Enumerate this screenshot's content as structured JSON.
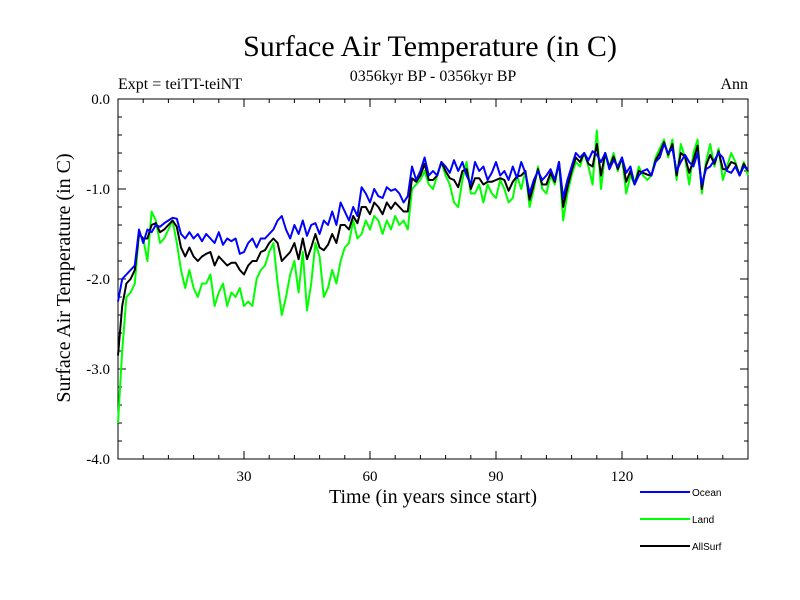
{
  "header": {
    "title": "Surface Air Temperature (in C)",
    "subtitle": "0356kyr BP - 0356kyr BP",
    "expt": "Expt = teiTT-teiNT",
    "season": "Ann"
  },
  "chart_data": {
    "type": "line",
    "title": "Surface Air Temperature (in C)",
    "xlabel": "Time (in years since start)",
    "ylabel": "Surface Air Temperature (in C)",
    "xlim": [
      0,
      150
    ],
    "ylim": [
      -4.0,
      0.0
    ],
    "xticks": [
      30,
      60,
      90,
      120
    ],
    "xtick_labels": [
      "30",
      "60",
      "90",
      "120"
    ],
    "yticks": [
      0.0,
      -1.0,
      -2.0,
      -3.0,
      -4.0
    ],
    "ytick_labels": [
      "0.0",
      "-1.0",
      "-2.0",
      "-3.0",
      "-4.0"
    ],
    "grid": false,
    "legend_position": "bottom-right, outside plot",
    "series": [
      {
        "name": "Ocean",
        "color": "#0000ff",
        "x": [
          0,
          1,
          2,
          3,
          4,
          5,
          6,
          7,
          8,
          9,
          10,
          11,
          12,
          13,
          14,
          15,
          16,
          17,
          18,
          19,
          20,
          21,
          22,
          23,
          24,
          25,
          26,
          27,
          28,
          29,
          30,
          31,
          32,
          33,
          34,
          35,
          36,
          37,
          38,
          39,
          40,
          41,
          42,
          43,
          44,
          45,
          46,
          47,
          48,
          49,
          50,
          51,
          52,
          53,
          54,
          55,
          56,
          57,
          58,
          59,
          60,
          61,
          62,
          63,
          64,
          65,
          66,
          67,
          68,
          69,
          70,
          71,
          72,
          73,
          74,
          75,
          76,
          77,
          78,
          79,
          80,
          81,
          82,
          83,
          84,
          85,
          86,
          87,
          88,
          89,
          90,
          91,
          92,
          93,
          94,
          95,
          96,
          97,
          98,
          99,
          100,
          101,
          102,
          103,
          104,
          105,
          106,
          107,
          108,
          109,
          110,
          111,
          112,
          113,
          114,
          115,
          116,
          117,
          118,
          119,
          120,
          121,
          122,
          123,
          124,
          125,
          126,
          127,
          128,
          129,
          130,
          131,
          132,
          133,
          134,
          135,
          136,
          137,
          138,
          139,
          140,
          141,
          142,
          143,
          144,
          145,
          146,
          147,
          148,
          149,
          150
        ],
        "values": [
          -2.25,
          -2.0,
          -1.95,
          -1.9,
          -1.85,
          -1.45,
          -1.6,
          -1.45,
          -1.48,
          -1.4,
          -1.42,
          -1.38,
          -1.35,
          -1.32,
          -1.33,
          -1.5,
          -1.55,
          -1.48,
          -1.55,
          -1.5,
          -1.58,
          -1.5,
          -1.55,
          -1.6,
          -1.48,
          -1.62,
          -1.55,
          -1.58,
          -1.55,
          -1.72,
          -1.7,
          -1.6,
          -1.55,
          -1.65,
          -1.55,
          -1.55,
          -1.5,
          -1.45,
          -1.35,
          -1.3,
          -1.45,
          -1.55,
          -1.4,
          -1.5,
          -1.35,
          -1.52,
          -1.4,
          -1.38,
          -1.5,
          -1.35,
          -1.4,
          -1.25,
          -1.4,
          -1.15,
          -1.25,
          -1.35,
          -1.2,
          -1.3,
          -0.98,
          -1.05,
          -1.15,
          -1.0,
          -1.08,
          -1.1,
          -0.98,
          -1.02,
          -1.0,
          -1.05,
          -1.15,
          -1.08,
          -0.75,
          -0.9,
          -0.8,
          -0.65,
          -0.85,
          -0.8,
          -0.85,
          -0.7,
          -0.75,
          -0.82,
          -0.68,
          -0.8,
          -0.7,
          -0.85,
          -0.95,
          -0.7,
          -0.8,
          -0.75,
          -0.9,
          -0.82,
          -0.7,
          -0.85,
          -0.8,
          -0.9,
          -0.75,
          -0.88,
          -0.7,
          -0.82,
          -1.05,
          -0.9,
          -0.8,
          -0.9,
          -0.85,
          -0.78,
          -0.9,
          -0.7,
          -1.1,
          -0.9,
          -0.75,
          -0.6,
          -0.65,
          -0.6,
          -0.68,
          -0.58,
          -0.62,
          -0.7,
          -0.6,
          -0.78,
          -0.68,
          -0.75,
          -0.65,
          -0.82,
          -0.75,
          -0.95,
          -0.85,
          -0.8,
          -0.78,
          -0.85,
          -0.7,
          -0.65,
          -0.5,
          -0.6,
          -0.55,
          -0.8,
          -0.7,
          -0.62,
          -0.7,
          -0.75,
          -0.6,
          -0.95,
          -0.78,
          -0.75,
          -0.68,
          -0.6,
          -0.65,
          -0.8,
          -0.82,
          -0.75,
          -0.85,
          -0.75,
          -0.78
        ]
      },
      {
        "name": "Land",
        "color": "#00ff00",
        "x": [
          0,
          1,
          2,
          3,
          4,
          5,
          6,
          7,
          8,
          9,
          10,
          11,
          12,
          13,
          14,
          15,
          16,
          17,
          18,
          19,
          20,
          21,
          22,
          23,
          24,
          25,
          26,
          27,
          28,
          29,
          30,
          31,
          32,
          33,
          34,
          35,
          36,
          37,
          38,
          39,
          40,
          41,
          42,
          43,
          44,
          45,
          46,
          47,
          48,
          49,
          50,
          51,
          52,
          53,
          54,
          55,
          56,
          57,
          58,
          59,
          60,
          61,
          62,
          63,
          64,
          65,
          66,
          67,
          68,
          69,
          70,
          71,
          72,
          73,
          74,
          75,
          76,
          77,
          78,
          79,
          80,
          81,
          82,
          83,
          84,
          85,
          86,
          87,
          88,
          89,
          90,
          91,
          92,
          93,
          94,
          95,
          96,
          97,
          98,
          99,
          100,
          101,
          102,
          103,
          104,
          105,
          106,
          107,
          108,
          109,
          110,
          111,
          112,
          113,
          114,
          115,
          116,
          117,
          118,
          119,
          120,
          121,
          122,
          123,
          124,
          125,
          126,
          127,
          128,
          129,
          130,
          131,
          132,
          133,
          134,
          135,
          136,
          137,
          138,
          139,
          140,
          141,
          142,
          143,
          144,
          145,
          146,
          147,
          148,
          149,
          150
        ],
        "values": [
          -3.6,
          -2.8,
          -2.2,
          -2.15,
          -2.05,
          -1.5,
          -1.55,
          -1.8,
          -1.25,
          -1.35,
          -1.6,
          -1.55,
          -1.45,
          -1.35,
          -1.6,
          -1.9,
          -2.1,
          -1.9,
          -2.1,
          -2.2,
          -2.05,
          -2.05,
          -1.95,
          -2.3,
          -2.15,
          -2.05,
          -2.3,
          -2.15,
          -2.2,
          -2.1,
          -2.3,
          -2.25,
          -2.3,
          -2.0,
          -1.9,
          -1.85,
          -1.7,
          -1.6,
          -2.05,
          -2.4,
          -2.2,
          -1.95,
          -1.8,
          -2.15,
          -1.7,
          -2.35,
          -2.05,
          -1.6,
          -1.75,
          -2.2,
          -2.1,
          -1.9,
          -2.05,
          -1.8,
          -1.65,
          -1.6,
          -1.35,
          -1.55,
          -1.5,
          -1.35,
          -1.45,
          -1.3,
          -1.35,
          -1.5,
          -1.35,
          -1.45,
          -1.3,
          -1.4,
          -1.35,
          -1.45,
          -1.0,
          -0.95,
          -0.9,
          -0.8,
          -0.95,
          -1.0,
          -0.85,
          -0.7,
          -0.85,
          -0.95,
          -1.15,
          -1.2,
          -0.9,
          -0.7,
          -1.05,
          -1.05,
          -0.95,
          -1.15,
          -0.95,
          -1.05,
          -1.1,
          -0.9,
          -1.0,
          -1.15,
          -1.1,
          -0.85,
          -1.0,
          -0.8,
          -1.2,
          -1.0,
          -0.75,
          -1.0,
          -1.05,
          -0.85,
          -0.95,
          -0.7,
          -1.35,
          -1.05,
          -0.85,
          -0.7,
          -0.75,
          -0.6,
          -0.75,
          -0.95,
          -0.35,
          -1.0,
          -0.6,
          -0.75,
          -0.6,
          -0.8,
          -0.65,
          -1.05,
          -0.85,
          -0.95,
          -0.75,
          -0.85,
          -0.9,
          -0.85,
          -0.65,
          -0.55,
          -0.45,
          -0.65,
          -0.45,
          -0.9,
          -0.5,
          -0.65,
          -0.95,
          -0.6,
          -0.45,
          -1.05,
          -0.7,
          -0.5,
          -0.75,
          -0.55,
          -0.9,
          -0.75,
          -0.6,
          -0.7,
          -0.85,
          -0.7,
          -0.85
        ]
      },
      {
        "name": "AllSurf",
        "color": "#000000",
        "x": [
          0,
          1,
          2,
          3,
          4,
          5,
          6,
          7,
          8,
          9,
          10,
          11,
          12,
          13,
          14,
          15,
          16,
          17,
          18,
          19,
          20,
          21,
          22,
          23,
          24,
          25,
          26,
          27,
          28,
          29,
          30,
          31,
          32,
          33,
          34,
          35,
          36,
          37,
          38,
          39,
          40,
          41,
          42,
          43,
          44,
          45,
          46,
          47,
          48,
          49,
          50,
          51,
          52,
          53,
          54,
          55,
          56,
          57,
          58,
          59,
          60,
          61,
          62,
          63,
          64,
          65,
          66,
          67,
          68,
          69,
          70,
          71,
          72,
          73,
          74,
          75,
          76,
          77,
          78,
          79,
          80,
          81,
          82,
          83,
          84,
          85,
          86,
          87,
          88,
          89,
          90,
          91,
          92,
          93,
          94,
          95,
          96,
          97,
          98,
          99,
          100,
          101,
          102,
          103,
          104,
          105,
          106,
          107,
          108,
          109,
          110,
          111,
          112,
          113,
          114,
          115,
          116,
          117,
          118,
          119,
          120,
          121,
          122,
          123,
          124,
          125,
          126,
          127,
          128,
          129,
          130,
          131,
          132,
          133,
          134,
          135,
          136,
          137,
          138,
          139,
          140,
          141,
          142,
          143,
          144,
          145,
          146,
          147,
          148,
          149,
          150
        ],
        "values": [
          -2.85,
          -2.3,
          -2.05,
          -2.0,
          -1.9,
          -1.5,
          -1.55,
          -1.55,
          -1.4,
          -1.38,
          -1.48,
          -1.45,
          -1.4,
          -1.35,
          -1.42,
          -1.65,
          -1.75,
          -1.65,
          -1.75,
          -1.8,
          -1.75,
          -1.72,
          -1.7,
          -1.85,
          -1.75,
          -1.8,
          -1.85,
          -1.82,
          -1.82,
          -1.9,
          -1.95,
          -1.85,
          -1.8,
          -1.8,
          -1.7,
          -1.68,
          -1.6,
          -1.55,
          -1.6,
          -1.8,
          -1.75,
          -1.7,
          -1.6,
          -1.78,
          -1.55,
          -1.78,
          -1.65,
          -1.5,
          -1.65,
          -1.68,
          -1.62,
          -1.5,
          -1.6,
          -1.4,
          -1.4,
          -1.45,
          -1.3,
          -1.38,
          -1.2,
          -1.2,
          -1.28,
          -1.15,
          -1.2,
          -1.28,
          -1.15,
          -1.22,
          -1.15,
          -1.2,
          -1.25,
          -1.25,
          -0.88,
          -0.92,
          -0.85,
          -0.72,
          -0.9,
          -0.9,
          -0.85,
          -0.7,
          -0.8,
          -0.88,
          -0.9,
          -0.98,
          -0.8,
          -0.78,
          -1.0,
          -0.88,
          -0.88,
          -0.95,
          -0.92,
          -0.92,
          -0.9,
          -0.88,
          -0.9,
          -1.02,
          -0.92,
          -0.86,
          -0.85,
          -0.8,
          -1.12,
          -0.95,
          -0.78,
          -0.95,
          -0.95,
          -0.82,
          -0.92,
          -0.7,
          -1.2,
          -0.98,
          -0.8,
          -0.65,
          -0.7,
          -0.6,
          -0.72,
          -0.75,
          -0.5,
          -0.85,
          -0.6,
          -0.76,
          -0.64,
          -0.78,
          -0.65,
          -0.92,
          -0.8,
          -0.95,
          -0.8,
          -0.82,
          -0.84,
          -0.85,
          -0.68,
          -0.6,
          -0.48,
          -0.62,
          -0.5,
          -0.85,
          -0.6,
          -0.64,
          -0.82,
          -0.68,
          -0.52,
          -1.0,
          -0.74,
          -0.62,
          -0.72,
          -0.58,
          -0.78,
          -0.78,
          -0.7,
          -0.72,
          -0.85,
          -0.72,
          -0.8
        ]
      }
    ]
  }
}
